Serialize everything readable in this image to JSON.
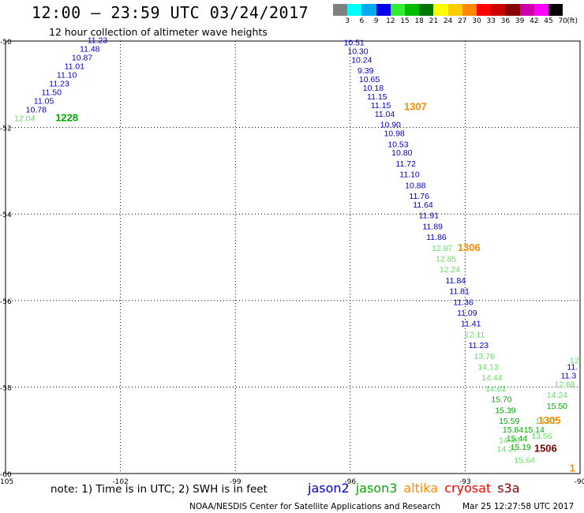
{
  "header": {
    "title": "12:00 – 23:59 UTC 03/24/2017",
    "subtitle": "12 hour collection of altimeter wave heights"
  },
  "colorbar": {
    "unit": "(ft)",
    "bins": [
      {
        "label": "3",
        "color": "#808080"
      },
      {
        "label": "6",
        "color": "#00ffff"
      },
      {
        "label": "9",
        "color": "#00aaee"
      },
      {
        "label": "12",
        "color": "#0000ee"
      },
      {
        "label": "15",
        "color": "#33ee33"
      },
      {
        "label": "18",
        "color": "#00bb00"
      },
      {
        "label": "21",
        "color": "#007700"
      },
      {
        "label": "24",
        "color": "#ffff00"
      },
      {
        "label": "27",
        "color": "#ffcc00"
      },
      {
        "label": "30",
        "color": "#ff8800"
      },
      {
        "label": "33",
        "color": "#ff0000"
      },
      {
        "label": "36",
        "color": "#cc0000"
      },
      {
        "label": "39",
        "color": "#880000"
      },
      {
        "label": "42",
        "color": "#cc00aa"
      },
      {
        "label": "45",
        "color": "#ff00ff"
      },
      {
        "label": "70",
        "color": "#000000"
      }
    ]
  },
  "map": {
    "lon_range": [
      -105,
      -90
    ],
    "lat_range": [
      -60,
      -50
    ],
    "lon_ticks": [
      {
        "value": -105,
        "label": "-105"
      },
      {
        "value": -102,
        "label": "-102"
      },
      {
        "value": -99,
        "label": "-99"
      },
      {
        "value": -96,
        "label": "-96"
      },
      {
        "value": -93,
        "label": "-93"
      },
      {
        "value": -90,
        "label": "-90"
      }
    ],
    "lat_ticks": [
      {
        "value": -50,
        "label": "-50"
      },
      {
        "value": -52,
        "label": "-52"
      },
      {
        "value": -54,
        "label": "-54"
      },
      {
        "value": -56,
        "label": "-56"
      },
      {
        "value": -58,
        "label": "-58"
      },
      {
        "value": -60,
        "label": "-60"
      }
    ],
    "satellite_colors": {
      "jason2": "#0000cc",
      "jason3": "#00aa00",
      "jason3_light": "#66dd66",
      "altika": "#ff8800",
      "cryosat": "#ff0000",
      "s3a": "#770000"
    },
    "tracks": [
      {
        "sat": "jason2",
        "points": [
          {
            "lon": -102.6,
            "lat": -50.05,
            "v": "11.23"
          },
          {
            "lon": -102.8,
            "lat": -50.25,
            "v": "11.48"
          },
          {
            "lon": -103.0,
            "lat": -50.45,
            "v": "10.87"
          },
          {
            "lon": -103.2,
            "lat": -50.65,
            "v": "11.01"
          },
          {
            "lon": -103.4,
            "lat": -50.85,
            "v": "11.10"
          },
          {
            "lon": -103.6,
            "lat": -51.05,
            "v": "11.23"
          },
          {
            "lon": -103.8,
            "lat": -51.25,
            "v": "11.50"
          },
          {
            "lon": -104.0,
            "lat": -51.45,
            "v": "11.05"
          },
          {
            "lon": -104.2,
            "lat": -51.65,
            "v": "10.78"
          }
        ]
      },
      {
        "sat": "jason3_light",
        "points": [
          {
            "lon": -104.5,
            "lat": -51.85,
            "v": "12.04"
          }
        ]
      },
      {
        "sat": "jason2",
        "points": [
          {
            "lon": -95.9,
            "lat": -50.1,
            "v": "10.51"
          },
          {
            "lon": -95.8,
            "lat": -50.3,
            "v": "10.30"
          },
          {
            "lon": -95.7,
            "lat": -50.5,
            "v": "10.24"
          },
          {
            "lon": -95.6,
            "lat": -50.75,
            "v": "9.39"
          },
          {
            "lon": -95.5,
            "lat": -50.95,
            "v": "10.65"
          },
          {
            "lon": -95.4,
            "lat": -51.15,
            "v": "10.18"
          },
          {
            "lon": -95.3,
            "lat": -51.35,
            "v": "11.15"
          },
          {
            "lon": -95.2,
            "lat": -51.55,
            "v": "11.15"
          },
          {
            "lon": -95.1,
            "lat": -51.75,
            "v": "11.04"
          },
          {
            "lon": -94.95,
            "lat": -52.0,
            "v": "10.90"
          },
          {
            "lon": -94.85,
            "lat": -52.2,
            "v": "10.98"
          },
          {
            "lon": -94.75,
            "lat": -52.45,
            "v": "10.53"
          },
          {
            "lon": -94.65,
            "lat": -52.65,
            "v": "10.80"
          },
          {
            "lon": -94.55,
            "lat": -52.9,
            "v": "11.72"
          },
          {
            "lon": -94.45,
            "lat": -53.15,
            "v": "11.10"
          },
          {
            "lon": -94.3,
            "lat": -53.4,
            "v": "10.88"
          },
          {
            "lon": -94.2,
            "lat": -53.65,
            "v": "11.76"
          },
          {
            "lon": -94.1,
            "lat": -53.85,
            "v": "11.64"
          },
          {
            "lon": -93.95,
            "lat": -54.1,
            "v": "11.91"
          },
          {
            "lon": -93.85,
            "lat": -54.35,
            "v": "11.89"
          },
          {
            "lon": -93.75,
            "lat": -54.6,
            "v": "11.86"
          }
        ]
      },
      {
        "sat": "jason3_light",
        "points": [
          {
            "lon": -93.6,
            "lat": -54.85,
            "v": "12.87"
          },
          {
            "lon": -93.5,
            "lat": -55.1,
            "v": "12.85"
          },
          {
            "lon": -93.4,
            "lat": -55.35,
            "v": "12.24"
          }
        ]
      },
      {
        "sat": "jason2",
        "points": [
          {
            "lon": -93.25,
            "lat": -55.6,
            "v": "11.84"
          },
          {
            "lon": -93.15,
            "lat": -55.85,
            "v": "11.81"
          },
          {
            "lon": -93.05,
            "lat": -56.1,
            "v": "11.36"
          },
          {
            "lon": -92.95,
            "lat": -56.35,
            "v": "11.09"
          },
          {
            "lon": -92.85,
            "lat": -56.6,
            "v": "11.41"
          }
        ]
      },
      {
        "sat": "jason3_light",
        "points": [
          {
            "lon": -92.75,
            "lat": -56.85,
            "v": "12.11"
          }
        ]
      },
      {
        "sat": "jason2",
        "points": [
          {
            "lon": -92.65,
            "lat": -57.1,
            "v": "11.23"
          }
        ]
      },
      {
        "sat": "jason3_light",
        "points": [
          {
            "lon": -92.5,
            "lat": -57.35,
            "v": "13.76"
          },
          {
            "lon": -92.4,
            "lat": -57.6,
            "v": "14.13"
          },
          {
            "lon": -92.3,
            "lat": -57.85,
            "v": "14.44"
          },
          {
            "lon": -92.2,
            "lat": -58.1,
            "v": "14.61"
          }
        ]
      },
      {
        "sat": "jason3",
        "points": [
          {
            "lon": -92.05,
            "lat": -58.35,
            "v": "15.70"
          },
          {
            "lon": -91.95,
            "lat": -58.6,
            "v": "15.39"
          },
          {
            "lon": -91.85,
            "lat": -58.85,
            "v": "15.59"
          },
          {
            "lon": -91.75,
            "lat": -59.05,
            "v": "15.84"
          },
          {
            "lon": -91.65,
            "lat": -59.25,
            "v": "15.44"
          },
          {
            "lon": -91.55,
            "lat": -59.45,
            "v": "15.19"
          }
        ]
      },
      {
        "sat": "jason3_light",
        "points": [
          {
            "lon": -91.45,
            "lat": -59.75,
            "v": "15.64"
          },
          {
            "lon": -91.9,
            "lat": -59.5,
            "v": "14.27"
          },
          {
            "lon": -91.85,
            "lat": -59.3,
            "v": "14.40"
          }
        ]
      },
      {
        "sat": "jason3_light",
        "points": [
          {
            "lon": -90.15,
            "lat": -57.45,
            "v": "12"
          },
          {
            "lon": -90.4,
            "lat": -58.0,
            "v": "12.68"
          },
          {
            "lon": -90.6,
            "lat": -58.25,
            "v": "14.24"
          }
        ]
      },
      {
        "sat": "jason2",
        "points": [
          {
            "lon": -90.2,
            "lat": -57.6,
            "v": "11."
          },
          {
            "lon": -90.3,
            "lat": -57.8,
            "v": "11.3"
          }
        ]
      },
      {
        "sat": "jason3",
        "points": [
          {
            "lon": -90.6,
            "lat": -58.5,
            "v": "15.50"
          }
        ]
      },
      {
        "sat": "jason3_light",
        "points": [
          {
            "lon": -90.9,
            "lat": -58.85,
            "v": "13.82"
          },
          {
            "lon": -91.0,
            "lat": -59.2,
            "v": "13.56"
          }
        ]
      },
      {
        "sat": "jason3",
        "points": [
          {
            "lon": -91.2,
            "lat": -59.05,
            "v": "15.14"
          }
        ]
      }
    ],
    "track_labels": [
      {
        "text": "1228",
        "sat": "jason3",
        "lon": -103.4,
        "lat": -51.85
      },
      {
        "text": "1307",
        "sat": "altika",
        "lon": -94.3,
        "lat": -51.6
      },
      {
        "text": "1306",
        "sat": "altika",
        "lon": -92.9,
        "lat": -54.85
      },
      {
        "text": "1305",
        "sat": "altika",
        "lon": -90.8,
        "lat": -58.85
      },
      {
        "text": "1506",
        "sat": "s3a",
        "lon": -90.9,
        "lat": -59.5
      },
      {
        "text": "1",
        "sat": "altika",
        "lon": -90.2,
        "lat": -59.95
      }
    ]
  },
  "note": "note: 1) Time is in UTC; 2) SWH is in feet",
  "legend": [
    {
      "label": "jason2",
      "color": "#0000cc"
    },
    {
      "label": "jason3",
      "color": "#00aa00"
    },
    {
      "label": "altika",
      "color": "#ff8800"
    },
    {
      "label": "cryosat",
      "color": "#ff0000"
    },
    {
      "label": "s3a",
      "color": "#770000"
    }
  ],
  "footer": {
    "credit": "NOAA/NESDIS Center for Satellite Applications and Research",
    "timestamp": "Mar 25 12:27:58 UTC 2017"
  }
}
